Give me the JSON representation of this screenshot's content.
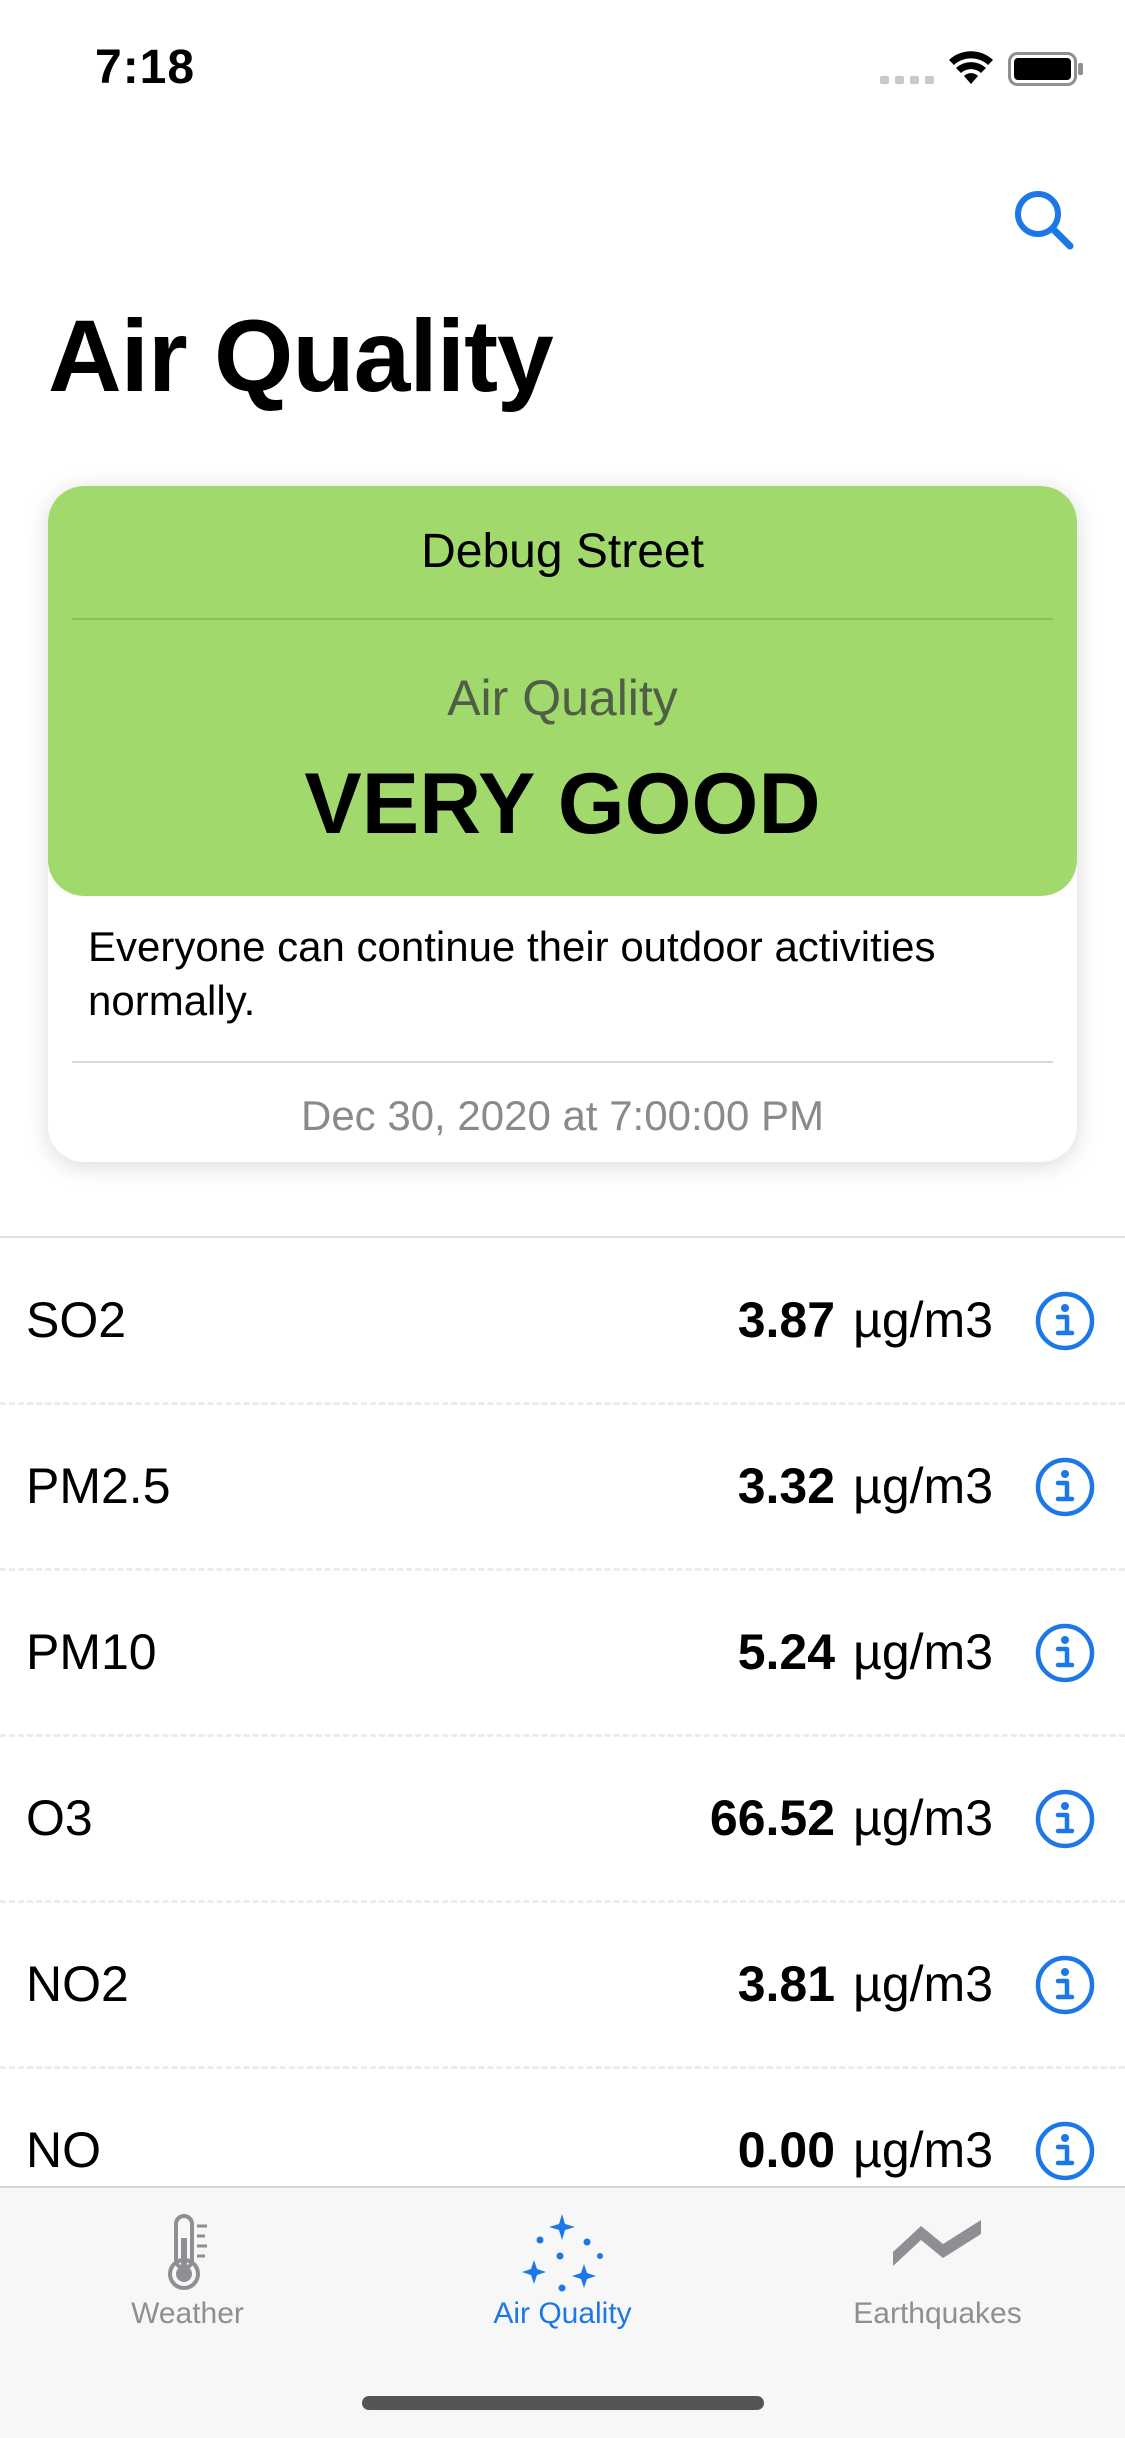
{
  "status_bar": {
    "time": "7:18"
  },
  "header": {
    "title": "Air Quality",
    "search_icon": "search-icon"
  },
  "card": {
    "location": "Debug Street",
    "aq_label": "Air Quality",
    "aq_value": "VERY GOOD",
    "advice": "Everyone can continue their outdoor activities normally.",
    "timestamp": "Dec 30, 2020 at 7:00:00 PM",
    "accent_color": "#a1d96c"
  },
  "pollutants": [
    {
      "name": "SO2",
      "value": "3.87",
      "unit": "µg/m3"
    },
    {
      "name": "PM2.5",
      "value": "3.32",
      "unit": "µg/m3"
    },
    {
      "name": "PM10",
      "value": "5.24",
      "unit": "µg/m3"
    },
    {
      "name": "O3",
      "value": "66.52",
      "unit": "µg/m3"
    },
    {
      "name": "NO2",
      "value": "3.81",
      "unit": "µg/m3"
    },
    {
      "name": "NO",
      "value": "0.00",
      "unit": "µg/m3"
    }
  ],
  "tabs": [
    {
      "label": "Weather",
      "icon": "thermometer-icon",
      "active": false
    },
    {
      "label": "Air Quality",
      "icon": "sparkles-icon",
      "active": true
    },
    {
      "label": "Earthquakes",
      "icon": "seismic-wave-icon",
      "active": false
    }
  ],
  "colors": {
    "tint": "#1b78e6",
    "inactive": "#8e8e93"
  }
}
